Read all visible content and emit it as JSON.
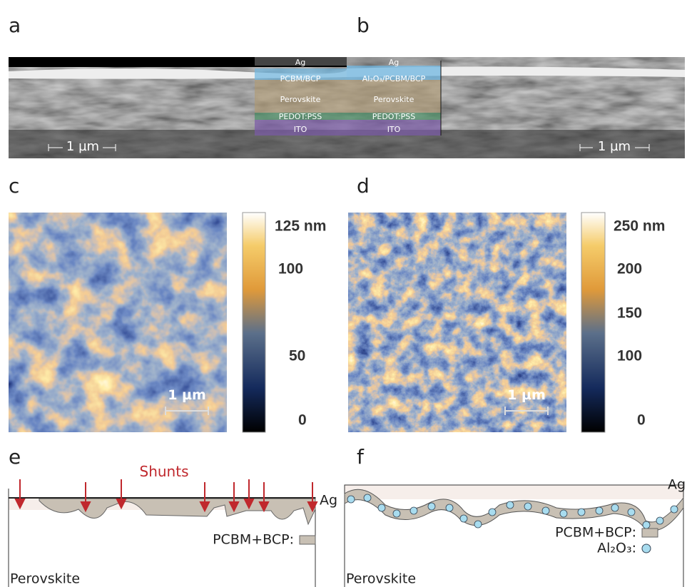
{
  "panels": {
    "a": {
      "label": "a",
      "layers": [
        "Ag",
        "PCBM/BCP",
        "Perovskite",
        "PEDOT:PSS",
        "ITO"
      ],
      "scale_bar": "1 µm"
    },
    "b": {
      "label": "b",
      "layers": [
        "Ag",
        "Al₂O₃/PCBM/BCP",
        "Perovskite",
        "PEDOT:PSS",
        "ITO"
      ],
      "scale_bar": "1 µm"
    },
    "c": {
      "label": "c",
      "colorbar_ticks": [
        "125 nm",
        "100",
        "50",
        "0"
      ],
      "scale_bar": "1 µm"
    },
    "d": {
      "label": "d",
      "colorbar_ticks": [
        "250 nm",
        "200",
        "150",
        "100",
        "0"
      ],
      "scale_bar": "1 µm"
    },
    "e": {
      "label": "e",
      "annotation": "Shunts",
      "top_layer": "Ag",
      "legend": [
        "PCBM+BCP:"
      ],
      "bottom_layer": "Perovskite"
    },
    "f": {
      "label": "f",
      "top_layer": "Ag",
      "legend": [
        "PCBM+BCP:",
        "Al₂O₃:"
      ],
      "bottom_layer": "Perovskite"
    }
  }
}
